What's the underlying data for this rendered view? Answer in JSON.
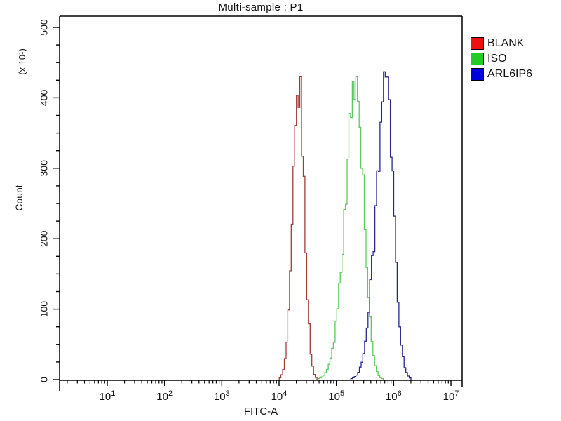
{
  "chart_data": {
    "type": "line",
    "subtype": "flow-cytometry-histogram",
    "title": "Multi-sample : P1",
    "xlabel": "FITC-A",
    "ylabel": "Count",
    "y_unit_label": "(x 10¹)",
    "x_scale": "log10",
    "x_tick_base": "10",
    "x_tick_exponents": [
      1,
      2,
      3,
      4,
      5,
      6,
      7
    ],
    "x_minor_ticks_per_decade": [
      2,
      3,
      4,
      5,
      6,
      7,
      8,
      9
    ],
    "xlim_log10": [
      0.17,
      7.2
    ],
    "ylim": [
      0,
      520
    ],
    "y_major_ticks": [
      0,
      100,
      200,
      300,
      400,
      500
    ],
    "y_minor_step": 25,
    "grid": false,
    "background_color": "#ffffff",
    "axis_color": "#000000",
    "legend_position": "top-right-outside",
    "series": [
      {
        "name": "BLANK",
        "legend_color": "#ee1111",
        "line_color": "#a03c3c",
        "peak_log10": 4.35,
        "peak_fitc_value": 22000,
        "peak_count": 430,
        "sigma_left_decades": 0.105,
        "sigma_right_decades": 0.095
      },
      {
        "name": "ISO",
        "legend_color": "#22cc22",
        "line_color": "#5cc95c",
        "peak_log10": 5.35,
        "peak_fitc_value": 220000,
        "peak_count": 430,
        "sigma_left_decades": 0.195,
        "sigma_right_decades": 0.135
      },
      {
        "name": "ARL6IP6",
        "legend_color": "#0000dd",
        "line_color": "#28288c",
        "peak_log10": 5.87,
        "peak_fitc_value": 740000,
        "peak_count": 437,
        "sigma_left_decades": 0.18,
        "sigma_right_decades": 0.13
      }
    ]
  }
}
